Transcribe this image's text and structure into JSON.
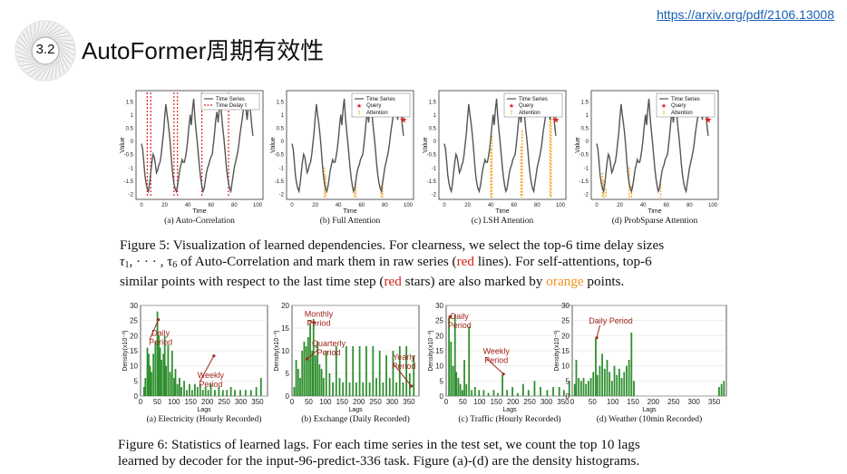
{
  "header": {
    "link": "https://arxiv.org/pdf/2106.13008",
    "section_number": "3.2",
    "title": "AutoFormer周期有效性"
  },
  "figure5": {
    "axis_ylabel": "Value",
    "axis_xlabel": "Time",
    "legend_time_series": "Time Series",
    "legend_time_delay": "Time Delay τ",
    "legend_query": "Query",
    "legend_attention": "Attention",
    "panels": [
      "(a) Auto-Correlation",
      "(b) Full Attention",
      "(c) LSH Attention",
      "(d) ProbSparse Attention"
    ],
    "caption": {
      "p1": "Figure 5: Visualization of learned dependencies. For clearness, we select the top-6 time delay sizes",
      "p2a": "τ",
      "p2b": "1",
      "p2c": ", · · · , τ",
      "p2d": "6",
      "p2e": " of Auto-Correlation and mark them in raw series (",
      "red1": "red",
      "p2f": " lines). For self-attentions, top-6",
      "p3a": "similar points with respect to the last time step (",
      "red2": "red",
      "p3b": " stars) are also marked by ",
      "orange": "orange",
      "p3c": " points."
    }
  },
  "figure6": {
    "axis_ylabel": "Density(x10⁻³)",
    "axis_xlabel": "Lags",
    "panels": [
      {
        "caption": "(a) Electricity (Hourly Recorded)",
        "ymax": 30,
        "yticks": [
          "0",
          "5",
          "10",
          "15",
          "20",
          "25",
          "30"
        ],
        "notes": [
          {
            "lines": [
              "Daily",
              "Period"
            ]
          },
          {
            "lines": [
              "Weekly",
              "Period"
            ]
          }
        ]
      },
      {
        "caption": "(b) Exchange (Daily Recorded)",
        "ymax": 20,
        "yticks": [
          "0",
          "5",
          "10",
          "15",
          "20"
        ],
        "notes": [
          {
            "lines": [
              "Monthly",
              "Period"
            ]
          },
          {
            "lines": [
              "Quarterly",
              "Period"
            ]
          },
          {
            "lines": [
              "Yearly",
              "Period"
            ]
          }
        ]
      },
      {
        "caption": "(c) Traffic (Hourly Recorded)",
        "ymax": 30,
        "yticks": [
          "0",
          "5",
          "10",
          "15",
          "20",
          "25",
          "30"
        ],
        "notes": [
          {
            "lines": [
              "Daily",
              "Period"
            ]
          },
          {
            "lines": [
              "Weekly",
              "Period"
            ]
          }
        ]
      },
      {
        "caption": "(d) Weather (10min Recorded)",
        "ymax": 30,
        "yticks": [
          "0",
          "5",
          "10",
          "15",
          "20",
          "25",
          "30"
        ],
        "notes": [
          {
            "lines": [
              "Daily Period"
            ]
          }
        ]
      }
    ],
    "xticks": [
      "0",
      "50",
      "100",
      "150",
      "200",
      "250",
      "300",
      "350"
    ],
    "caption": {
      "l1": "Figure 6: Statistics of learned lags. For each time series in the test set, we count the top 10 lags",
      "l2": "learned by decoder for the input-96-predict-336 task. Figure (a)-(d) are the density histograms."
    }
  },
  "colors": {
    "series": "#555555",
    "delay": "#e02020",
    "attention": "#f5a623",
    "bars": "#2f8f2f",
    "note": "#a0261c"
  }
}
